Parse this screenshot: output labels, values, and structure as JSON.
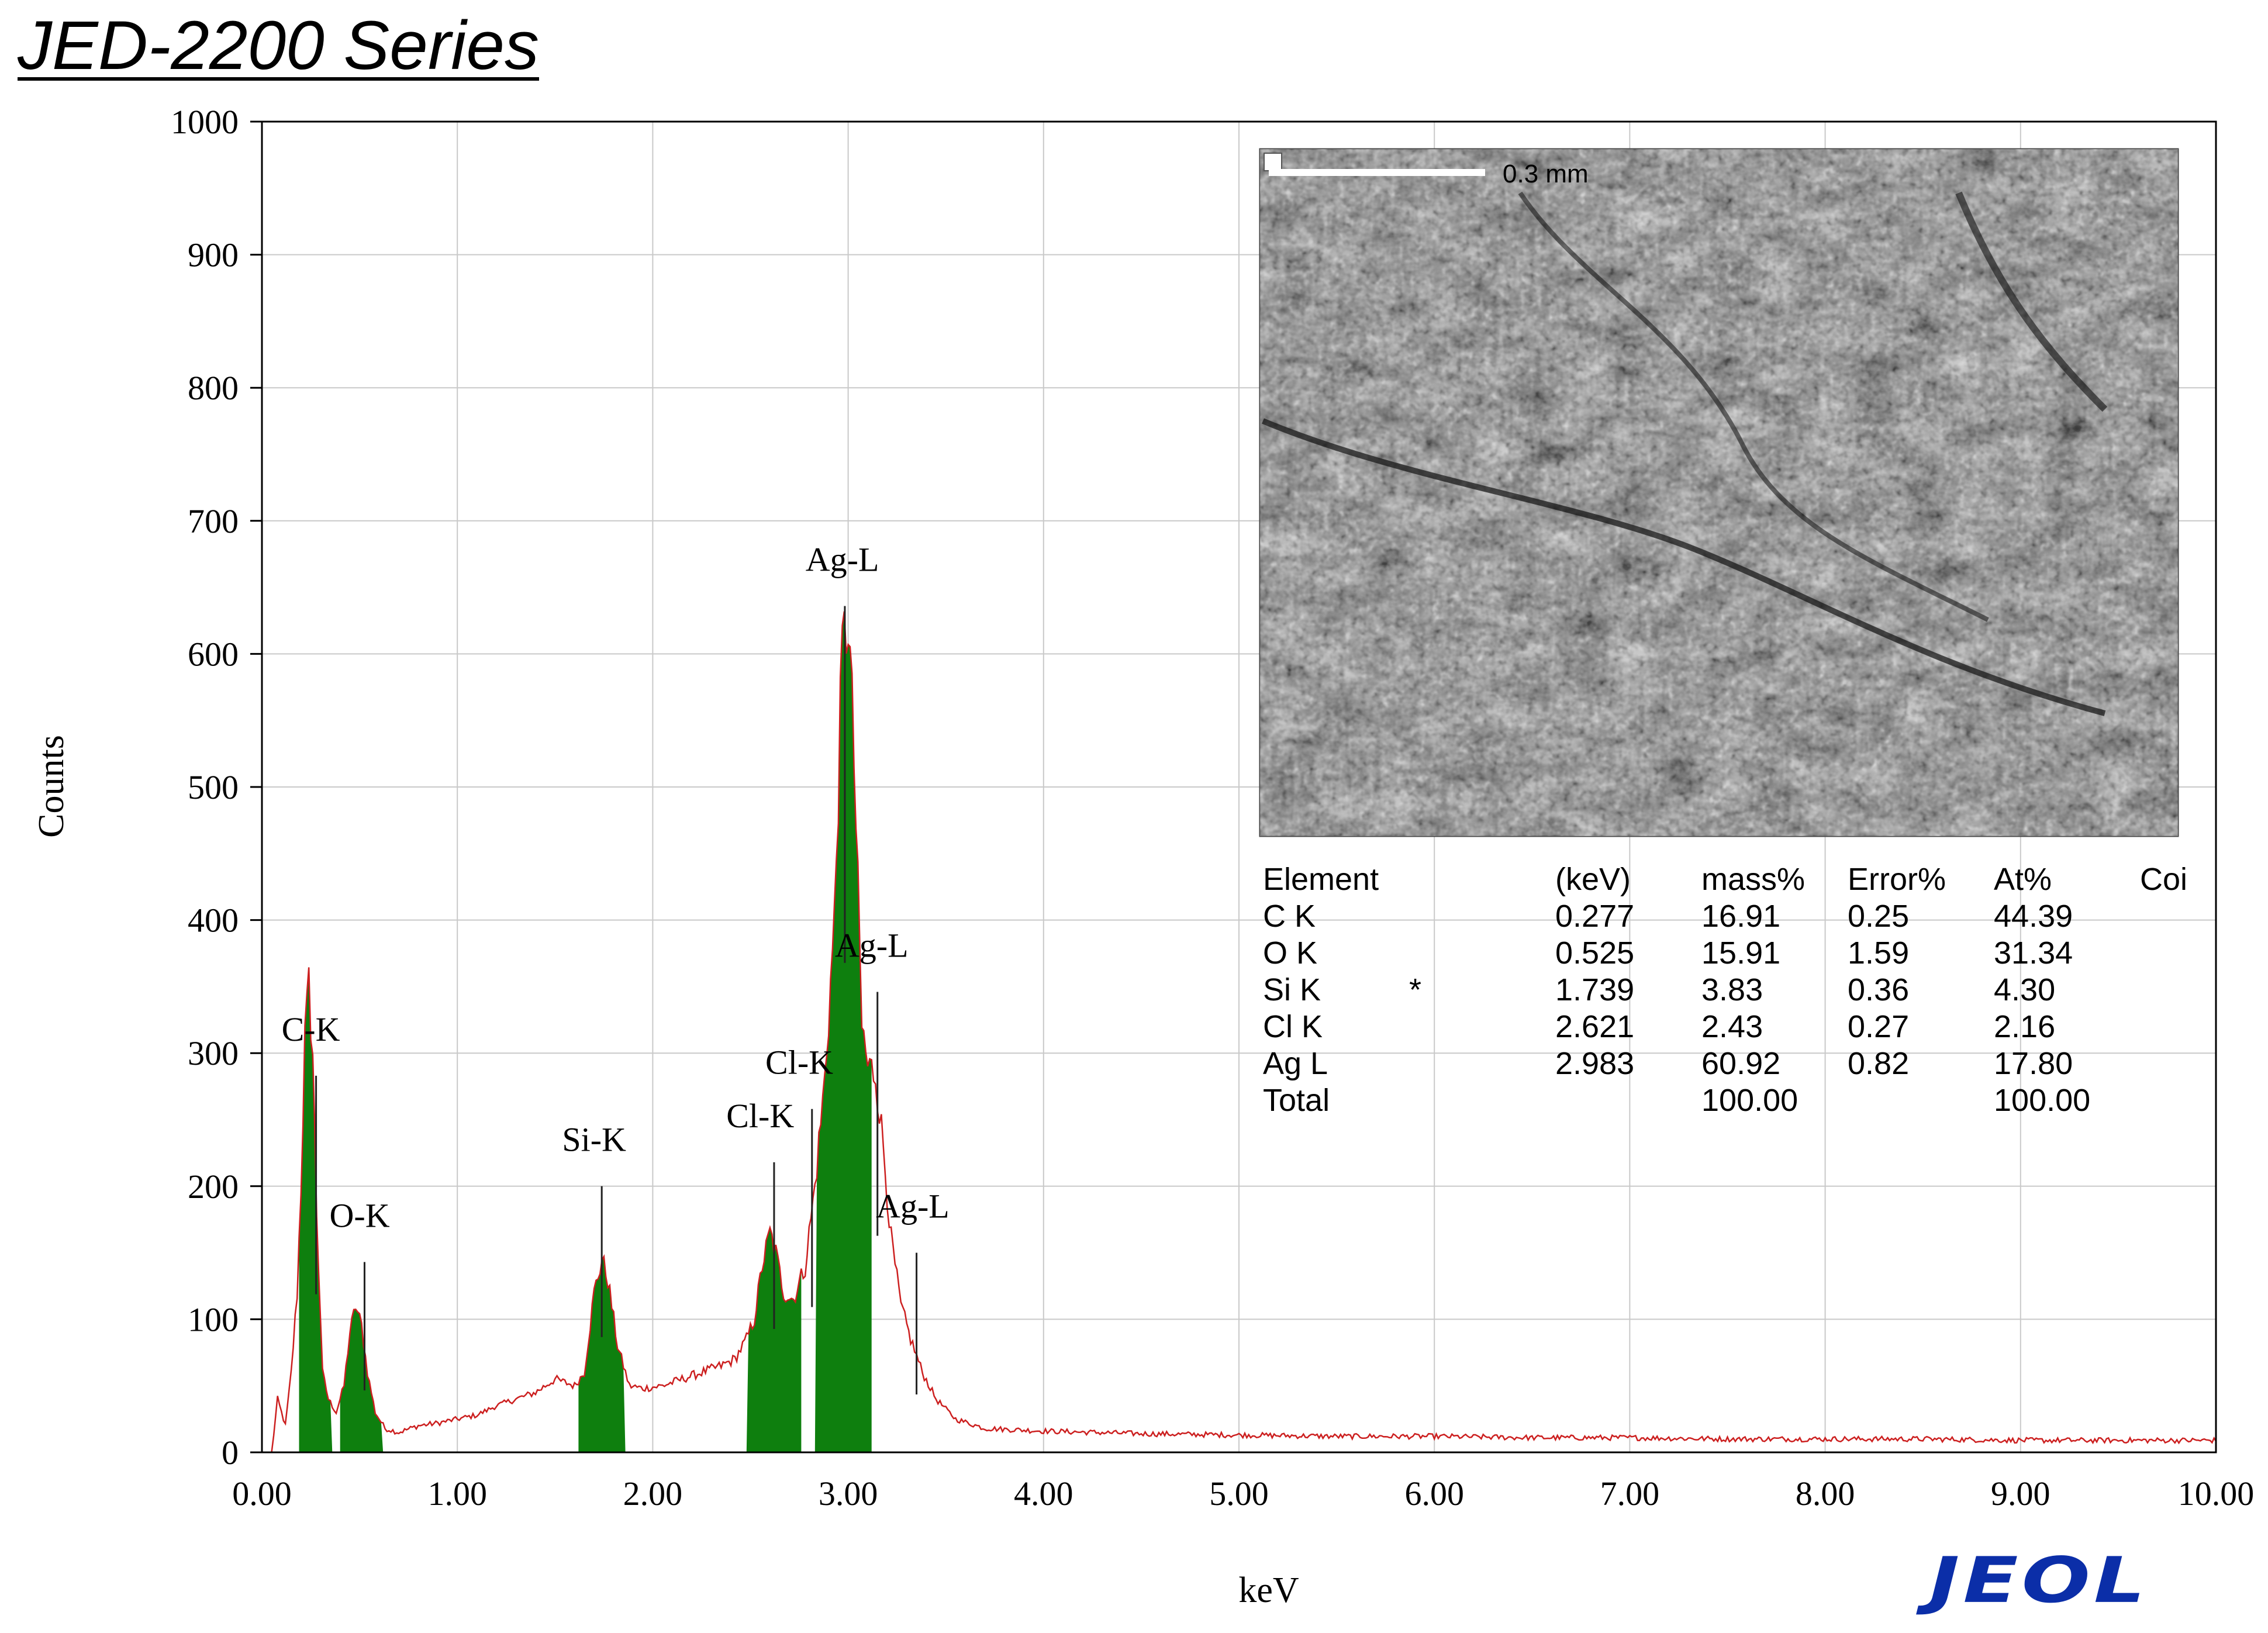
{
  "header": {
    "title": "JED-2200 Series"
  },
  "logo": {
    "text": "JEOL",
    "color": "#0b2ea8"
  },
  "chart_data": {
    "type": "line",
    "title": "",
    "xlabel": "keV",
    "ylabel": "Counts",
    "xlim": [
      0.0,
      10.0
    ],
    "ylim": [
      0,
      1000
    ],
    "x_ticks": [
      "0.00",
      "1.00",
      "2.00",
      "3.00",
      "4.00",
      "5.00",
      "6.00",
      "7.00",
      "8.00",
      "9.00",
      "10.00"
    ],
    "y_ticks": [
      "0",
      "100",
      "200",
      "300",
      "400",
      "500",
      "600",
      "700",
      "800",
      "900",
      "1000"
    ],
    "grid": true,
    "colors": {
      "spectrum": "#cc1f1f",
      "peak_fill": "#0e7f0e",
      "grid": "#c9c9c9"
    },
    "spectrum_points": [
      [
        0.05,
        0
      ],
      [
        0.08,
        40
      ],
      [
        0.12,
        20
      ],
      [
        0.15,
        60
      ],
      [
        0.18,
        120
      ],
      [
        0.2,
        200
      ],
      [
        0.22,
        310
      ],
      [
        0.24,
        350
      ],
      [
        0.26,
        300
      ],
      [
        0.28,
        180
      ],
      [
        0.31,
        60
      ],
      [
        0.34,
        40
      ],
      [
        0.38,
        30
      ],
      [
        0.42,
        50
      ],
      [
        0.45,
        90
      ],
      [
        0.48,
        110
      ],
      [
        0.51,
        95
      ],
      [
        0.54,
        60
      ],
      [
        0.58,
        30
      ],
      [
        0.63,
        18
      ],
      [
        0.7,
        15
      ],
      [
        0.8,
        20
      ],
      [
        0.9,
        22
      ],
      [
        1.0,
        25
      ],
      [
        1.1,
        28
      ],
      [
        1.2,
        35
      ],
      [
        1.3,
        40
      ],
      [
        1.4,
        45
      ],
      [
        1.5,
        55
      ],
      [
        1.6,
        50
      ],
      [
        1.65,
        60
      ],
      [
        1.7,
        120
      ],
      [
        1.74,
        145
      ],
      [
        1.77,
        130
      ],
      [
        1.82,
        80
      ],
      [
        1.88,
        50
      ],
      [
        1.95,
        48
      ],
      [
        2.05,
        50
      ],
      [
        2.15,
        55
      ],
      [
        2.25,
        60
      ],
      [
        2.35,
        65
      ],
      [
        2.42,
        70
      ],
      [
        2.48,
        85
      ],
      [
        2.52,
        100
      ],
      [
        2.56,
        140
      ],
      [
        2.6,
        165
      ],
      [
        2.63,
        150
      ],
      [
        2.67,
        120
      ],
      [
        2.72,
        115
      ],
      [
        2.78,
        140
      ],
      [
        2.83,
        200
      ],
      [
        2.88,
        280
      ],
      [
        2.93,
        400
      ],
      [
        2.97,
        600
      ],
      [
        3.0,
        630
      ],
      [
        3.03,
        520
      ],
      [
        3.07,
        320
      ],
      [
        3.1,
        290
      ],
      [
        3.14,
        285
      ],
      [
        3.18,
        230
      ],
      [
        3.22,
        160
      ],
      [
        3.27,
        110
      ],
      [
        3.32,
        85
      ],
      [
        3.38,
        60
      ],
      [
        3.45,
        40
      ],
      [
        3.55,
        25
      ],
      [
        3.7,
        18
      ],
      [
        4.0,
        16
      ],
      [
        4.5,
        14
      ],
      [
        5.0,
        13
      ],
      [
        5.5,
        12
      ],
      [
        6.0,
        12
      ],
      [
        6.5,
        11
      ],
      [
        7.0,
        11
      ],
      [
        7.5,
        10
      ],
      [
        8.0,
        10
      ],
      [
        8.5,
        10
      ],
      [
        9.0,
        9
      ],
      [
        9.5,
        9
      ],
      [
        10.0,
        9
      ]
    ],
    "peaks": [
      {
        "label": "C-K",
        "energy": 0.277,
        "from": 0.19,
        "to": 0.36,
        "label_counts": 305,
        "label_x": 0.25
      },
      {
        "label": "O-K",
        "energy": 0.525,
        "from": 0.4,
        "to": 0.62,
        "label_counts": 165,
        "label_x": 0.5
      },
      {
        "label": "Si-K",
        "energy": 1.739,
        "from": 1.62,
        "to": 1.86,
        "label_counts": 222,
        "label_x": 1.7
      },
      {
        "label": "Cl-K",
        "energy": 2.621,
        "from": 2.48,
        "to": 2.76,
        "label_counts": 240,
        "label_x": 2.55
      },
      {
        "label": "Cl-K",
        "energy": 2.815,
        "from": 2.48,
        "to": 2.76,
        "label_counts": 280,
        "label_x": 2.75
      },
      {
        "label": "Ag-L",
        "energy": 2.983,
        "from": 2.83,
        "to": 3.12,
        "label_counts": 658,
        "label_x": 2.97
      },
      {
        "label": "Ag-L",
        "energy": 3.15,
        "from": 2.83,
        "to": 3.12,
        "label_counts": 368,
        "label_x": 3.12
      },
      {
        "label": "Ag-L",
        "energy": 3.35,
        "from": 2.83,
        "to": 3.12,
        "label_counts": 172,
        "label_x": 3.33
      }
    ]
  },
  "sem_image": {
    "scale_bar_label": "0.3 mm"
  },
  "results_table": {
    "headers": [
      "Element",
      "(keV)",
      "mass%",
      "Error%",
      "At%",
      "Coi"
    ],
    "rows": [
      [
        "C  K",
        "",
        "0.277",
        "16.91",
        "0.25",
        "44.39"
      ],
      [
        "O  K",
        "",
        "0.525",
        "15.91",
        "1.59",
        "31.34"
      ],
      [
        "Si K",
        "*",
        "1.739",
        "3.83",
        "0.36",
        "4.30"
      ],
      [
        "Cl K",
        "",
        "2.621",
        "2.43",
        "0.27",
        "2.16"
      ],
      [
        "Ag L",
        "",
        "2.983",
        "60.92",
        "0.82",
        "17.80"
      ],
      [
        "Total",
        "",
        "",
        "100.00",
        "",
        "100.00"
      ]
    ]
  }
}
